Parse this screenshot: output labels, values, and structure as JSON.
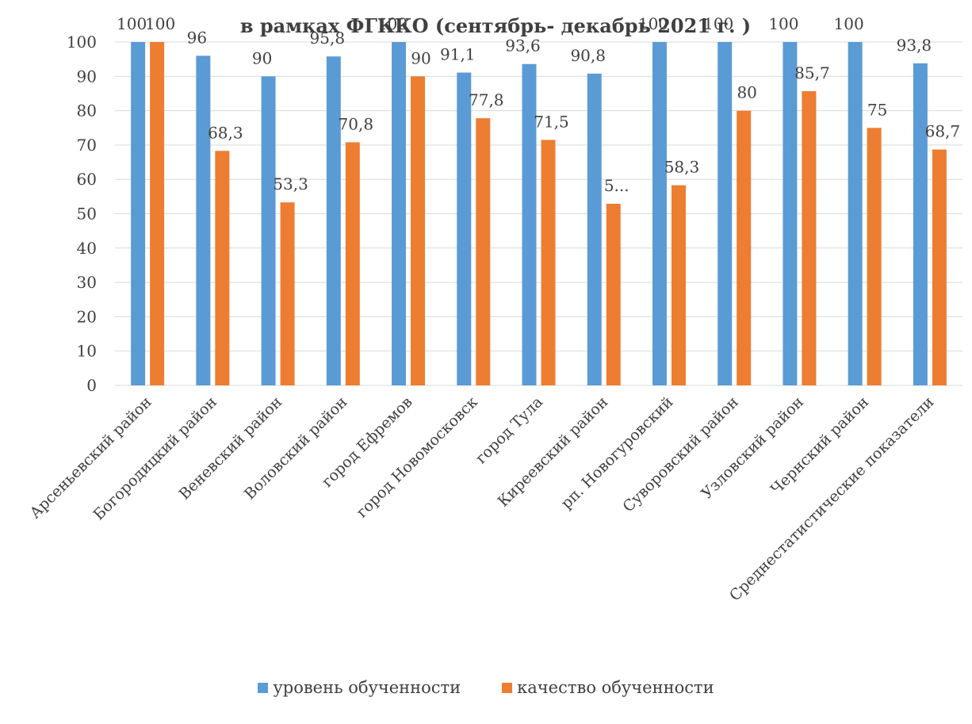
{
  "chart_data": {
    "type": "bar",
    "title": "в рамках ФГККО (сентябрь- декабрь 2021 г. )",
    "categories": [
      "Арсеньевский район",
      "Богородицкий район",
      "Веневский район",
      "Воловский район",
      "город Ефремов",
      "город Новомосковск",
      "город Тула",
      "Киреевский район",
      "рп. Новогуровский",
      "Суворовский район",
      "Узловский район",
      "Чернский район",
      "Среднестатистические показатели"
    ],
    "series": [
      {
        "name": "уровень обученности",
        "color": "#5B9BD5",
        "values": [
          100,
          96,
          90,
          95.8,
          100,
          91.1,
          93.6,
          90.8,
          100,
          100,
          100,
          100,
          93.8
        ],
        "labels": [
          "100",
          "96",
          "90",
          "95,8",
          "100",
          "91,1",
          "93,6",
          "90,8",
          "100",
          "100",
          "100",
          "100",
          "93,8"
        ]
      },
      {
        "name": "качество обученности",
        "color": "#ED7D31",
        "values": [
          100,
          68.3,
          53.3,
          70.8,
          90,
          77.8,
          71.5,
          52.9,
          58.3,
          80,
          85.7,
          75,
          68.7
        ],
        "labels": [
          "100",
          "68,3",
          "53,3",
          "70,8",
          "90",
          "77,8",
          "71,5",
          "5...",
          "58,3",
          "80",
          "85,7",
          "75",
          "68,7"
        ]
      }
    ],
    "y_ticks": [
      0,
      10,
      20,
      30,
      40,
      50,
      60,
      70,
      80,
      90,
      100
    ],
    "ylim": [
      0,
      100
    ],
    "grid": true,
    "legend_position": "bottom",
    "grid_color": "#d9d9d9",
    "text_color": "#404040"
  }
}
